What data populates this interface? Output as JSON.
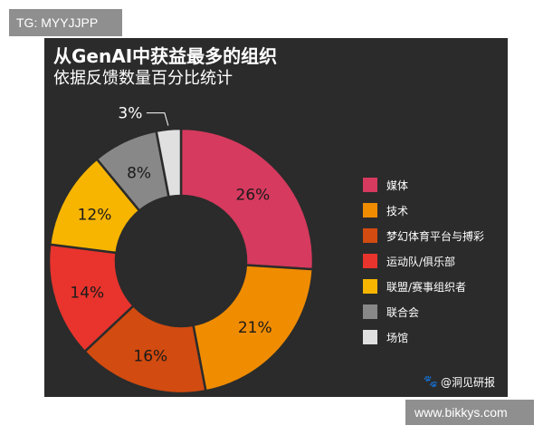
{
  "tag_label": "TG: MYYJJPP",
  "footer_label": "www.bikkys.com",
  "credit_text": "@洞见研报",
  "credit_icon": "paw-icon",
  "chart_data": {
    "type": "pie",
    "variant": "donut",
    "title": "从GenAI中获益最多的组织",
    "subtitle": "依据反馈数量百分比统计",
    "legend_position": "right",
    "categories": [
      "媒体",
      "技术",
      "梦幻体育平台与搏彩",
      "运动队/俱乐部",
      "联盟/赛事组织者",
      "联合会",
      "场馆"
    ],
    "values": [
      26,
      21,
      16,
      14,
      12,
      8,
      3
    ],
    "data_labels": [
      "26%",
      "21%",
      "16%",
      "14%",
      "12%",
      "8%",
      "3%"
    ],
    "colors": [
      "#d63a5e",
      "#f08c00",
      "#d24b10",
      "#e8342d",
      "#f7b500",
      "#888888",
      "#e0e0e0"
    ],
    "background": "#2b2b2b"
  }
}
